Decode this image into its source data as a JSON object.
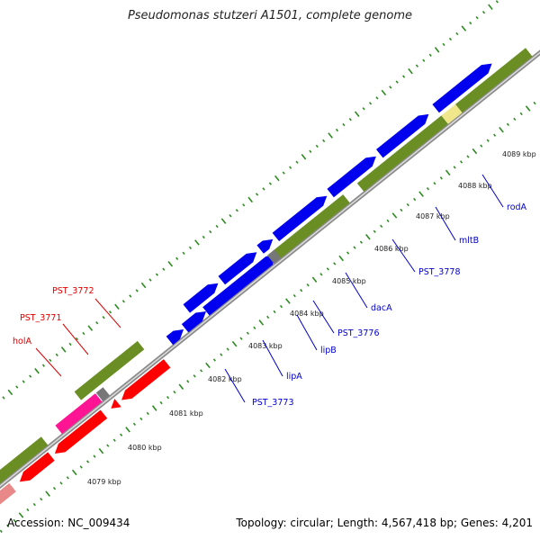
{
  "title": "Pseudomonas stutzeri A1501, complete genome",
  "footer": {
    "accession": "Accession: NC_009434",
    "summary": "Topology: circular; Length: 4,567,418 bp; Genes: 4,201"
  },
  "colors": {
    "backbone": "#8c8c8c",
    "cds_forward": "#0000ee",
    "cds_reverse": "#ff0000",
    "cds_other": "#6a8e23",
    "highlight": "#ff1493",
    "rna": "#f0e68c",
    "gap": "#777777",
    "tick": "#2e8b22",
    "label_forward": "#0000cc",
    "label_reverse": "#dd0000"
  },
  "scale_labels": [
    "4079 kbp",
    "4080 kbp",
    "4081 kbp",
    "4082 kbp",
    "4083 kbp",
    "4084 kbp",
    "4085 kbp",
    "4086 kbp",
    "4087 kbp",
    "4088 kbp",
    "4089 kbp"
  ],
  "gene_labels_forward": [
    "PST_3773",
    "lipA",
    "lipB",
    "PST_3776",
    "dacA",
    "PST_3778",
    "mltB",
    "rodA"
  ],
  "gene_labels_reverse": [
    "PST_3772",
    "PST_3771",
    "holA"
  ]
}
